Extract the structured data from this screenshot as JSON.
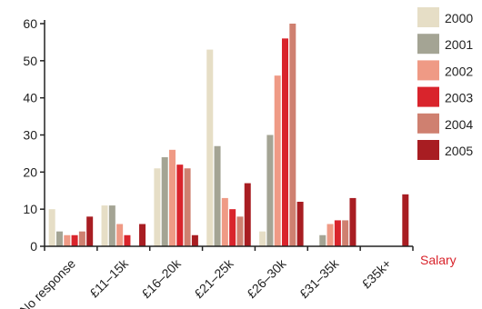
{
  "chart_data": {
    "type": "bar",
    "categories": [
      "No response",
      "£11–15k",
      "£16–20k",
      "£21–25k",
      "£26–30k",
      "£31–35k",
      "£35k+"
    ],
    "series": [
      {
        "name": "2000",
        "color": "#e6dec6",
        "values": [
          10,
          11,
          21,
          53,
          4,
          0,
          0
        ]
      },
      {
        "name": "2001",
        "color": "#a4a494",
        "values": [
          4,
          11,
          24,
          27,
          30,
          3,
          0
        ]
      },
      {
        "name": "2002",
        "color": "#ef9a85",
        "values": [
          3,
          6,
          26,
          13,
          46,
          6,
          0
        ]
      },
      {
        "name": "2003",
        "color": "#d9242c",
        "values": [
          3,
          3,
          22,
          10,
          56,
          7,
          0
        ]
      },
      {
        "name": "2004",
        "color": "#cf8070",
        "values": [
          4,
          0,
          21,
          8,
          60,
          7,
          0
        ]
      },
      {
        "name": "2005",
        "color": "#a81d22",
        "values": [
          8,
          6,
          3,
          17,
          12,
          13,
          14
        ]
      }
    ],
    "xlabel": "Salary",
    "xlabel_color": "#d9242c",
    "ylabel": "",
    "ylim": [
      0,
      60
    ],
    "yticks": [
      0,
      10,
      20,
      30,
      40,
      50,
      60
    ],
    "grid": false,
    "legend_position": "right"
  }
}
